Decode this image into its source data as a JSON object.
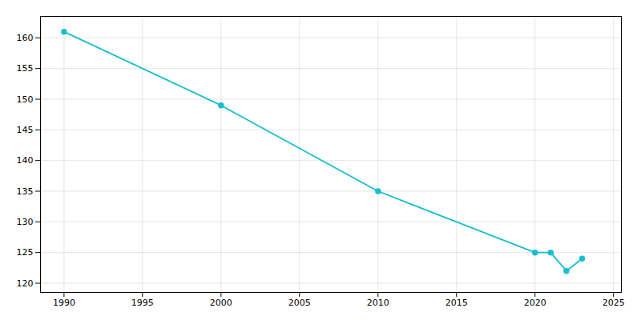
{
  "chart_data": {
    "type": "line",
    "x": [
      1990,
      2000,
      2010,
      2020,
      2021,
      2022,
      2023
    ],
    "values": [
      161,
      149,
      135,
      125,
      125,
      122,
      124
    ],
    "color": "#17becf",
    "marker": "circle",
    "xlim": [
      1988.5,
      2025.5
    ],
    "ylim": [
      118.5,
      163.5
    ],
    "xticks": [
      1990,
      1995,
      2000,
      2005,
      2010,
      2015,
      2020,
      2025
    ],
    "yticks": [
      120,
      125,
      130,
      135,
      140,
      145,
      150,
      155,
      160
    ],
    "grid": true
  }
}
